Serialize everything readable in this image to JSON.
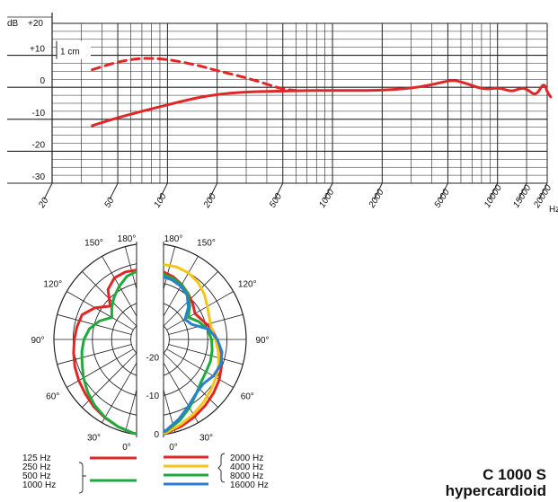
{
  "chart_data": [
    {
      "type": "line",
      "ylabel": "dB",
      "y_ticks": [
        "+20",
        "+10",
        "0",
        "-10",
        "-20",
        "-30"
      ],
      "ylim": [
        -30,
        20
      ],
      "xlabel": "Hz",
      "x_ticks": [
        "20",
        "50",
        "100",
        "200",
        "500",
        "1000",
        "2000",
        "5000",
        "10000",
        "15000",
        "20000"
      ],
      "xlim": [
        20,
        20000
      ],
      "x_scale": "log",
      "annotation": "1 cm",
      "colors": {
        "curve": "#e02626",
        "grid": "#222222"
      },
      "series": [
        {
          "values": [
            [
              35,
              -12
            ],
            [
              50,
              -9.5
            ],
            [
              70,
              -7.5
            ],
            [
              100,
              -5.5
            ],
            [
              140,
              -3.6
            ],
            [
              200,
              -2.2
            ],
            [
              300,
              -1.4
            ],
            [
              500,
              -1.2
            ],
            [
              700,
              -1.0
            ],
            [
              1000,
              -1.0
            ],
            [
              1500,
              -1.0
            ],
            [
              2000,
              -0.9
            ],
            [
              3000,
              -0.3
            ],
            [
              4000,
              0.8
            ],
            [
              5000,
              2.0
            ],
            [
              5500,
              2.2
            ],
            [
              6500,
              1.2
            ],
            [
              7500,
              0.0
            ],
            [
              8500,
              -0.6
            ],
            [
              9500,
              -0.3
            ],
            [
              10500,
              -0.3
            ],
            [
              11500,
              -1.0
            ],
            [
              12500,
              -1.2
            ],
            [
              13500,
              -0.4
            ],
            [
              14500,
              -0.3
            ],
            [
              15500,
              -1.0
            ],
            [
              16500,
              -2.2
            ],
            [
              17500,
              -1.8
            ],
            [
              18500,
              0.3
            ],
            [
              19000,
              0.8
            ],
            [
              19500,
              0.4
            ],
            [
              20000,
              -1.5
            ],
            [
              21000,
              -3.0
            ]
          ]
        },
        {
          "dashed": true,
          "values": [
            [
              35,
              5.5
            ],
            [
              50,
              8.0
            ],
            [
              70,
              9.2
            ],
            [
              100,
              8.8
            ],
            [
              150,
              7.0
            ],
            [
              200,
              5.2
            ],
            [
              300,
              3.0
            ],
            [
              400,
              1.0
            ],
            [
              500,
              -0.6
            ],
            [
              600,
              -1.0
            ]
          ]
        }
      ]
    },
    {
      "type": "polar",
      "angle_labels": [
        "180°",
        "150°",
        "120°",
        "90°",
        "60°",
        "30°",
        "0°"
      ],
      "radial_labels": [
        "-20",
        "-10",
        "0"
      ],
      "left_half": {
        "series": [
          {
            "frequencies": [
              "125 Hz",
              "250 Hz"
            ],
            "color": "#e02626",
            "values": [
              [
                0,
                0
              ],
              [
                10,
                -0.2
              ],
              [
                20,
                -0.8
              ],
              [
                30,
                -1.5
              ],
              [
                40,
                -2.2
              ],
              [
                50,
                -3.0
              ],
              [
                60,
                -3.6
              ],
              [
                70,
                -4.2
              ],
              [
                80,
                -4.8
              ],
              [
                90,
                -5.3
              ],
              [
                100,
                -5.7
              ],
              [
                110,
                -6.2
              ],
              [
                120,
                -8.5
              ],
              [
                130,
                -11.5
              ],
              [
                140,
                -8.0
              ],
              [
                150,
                -6.5
              ],
              [
                160,
                -6.3
              ],
              [
                170,
                -6.6
              ],
              [
                180,
                -6.8
              ]
            ]
          },
          {
            "frequencies": [
              "500 Hz",
              "1000 Hz"
            ],
            "color": "#1faa3e",
            "values": [
              [
                0,
                0
              ],
              [
                10,
                -0.2
              ],
              [
                20,
                -0.8
              ],
              [
                30,
                -1.6
              ],
              [
                40,
                -2.6
              ],
              [
                50,
                -3.8
              ],
              [
                60,
                -5.0
              ],
              [
                70,
                -6.2
              ],
              [
                80,
                -7.0
              ],
              [
                90,
                -7.8
              ],
              [
                100,
                -9.0
              ],
              [
                110,
                -11.0
              ],
              [
                120,
                -13.5
              ],
              [
                130,
                -12.0
              ],
              [
                140,
                -10.5
              ],
              [
                150,
                -9.0
              ],
              [
                160,
                -7.5
              ],
              [
                170,
                -6.8
              ],
              [
                180,
                -6.6
              ]
            ]
          }
        ]
      },
      "right_half": {
        "series": [
          {
            "frequencies": [
              "2000 Hz"
            ],
            "color": "#e02626",
            "values": [
              [
                0,
                0
              ],
              [
                10,
                -0.3
              ],
              [
                20,
                -1.0
              ],
              [
                30,
                -1.8
              ],
              [
                40,
                -2.6
              ],
              [
                50,
                -3.4
              ],
              [
                60,
                -4.2
              ],
              [
                70,
                -5.2
              ],
              [
                80,
                -6.2
              ],
              [
                90,
                -7.6
              ],
              [
                100,
                -8.8
              ],
              [
                110,
                -10.5
              ],
              [
                120,
                -11.5
              ],
              [
                130,
                -10.5
              ],
              [
                140,
                -9.5
              ],
              [
                150,
                -8.5
              ],
              [
                160,
                -7.6
              ],
              [
                170,
                -7.0
              ],
              [
                180,
                -6.8
              ]
            ]
          },
          {
            "frequencies": [
              "4000 Hz"
            ],
            "color": "#f5c518",
            "values": [
              [
                0,
                0
              ],
              [
                10,
                -0.4
              ],
              [
                20,
                -1.5
              ],
              [
                30,
                -2.5
              ],
              [
                40,
                -3.5
              ],
              [
                50,
                -4.4
              ],
              [
                60,
                -5.2
              ],
              [
                70,
                -6.0
              ],
              [
                80,
                -7.0
              ],
              [
                90,
                -8.0
              ],
              [
                100,
                -8.8
              ],
              [
                110,
                -8.6
              ],
              [
                120,
                -7.8
              ],
              [
                130,
                -6.6
              ],
              [
                140,
                -5.6
              ],
              [
                150,
                -5.0
              ],
              [
                160,
                -4.9
              ],
              [
                170,
                -5.2
              ],
              [
                180,
                -5.5
              ]
            ]
          },
          {
            "frequencies": [
              "8000 Hz"
            ],
            "color": "#1faa3e",
            "values": [
              [
                0,
                0
              ],
              [
                10,
                -0.8
              ],
              [
                20,
                -2.5
              ],
              [
                30,
                -4.5
              ],
              [
                40,
                -6.4
              ],
              [
                50,
                -7.7
              ],
              [
                60,
                -8.2
              ],
              [
                70,
                -8.3
              ],
              [
                80,
                -8.6
              ],
              [
                90,
                -9.0
              ],
              [
                100,
                -9.8
              ],
              [
                110,
                -11.5
              ],
              [
                120,
                -13.5
              ],
              [
                130,
                -11.5
              ],
              [
                140,
                -9.6
              ],
              [
                150,
                -8.6
              ],
              [
                160,
                -8.0
              ],
              [
                170,
                -7.6
              ],
              [
                180,
                -7.5
              ]
            ]
          },
          {
            "frequencies": [
              "16000 Hz"
            ],
            "color": "#2b7fd1",
            "values": [
              [
                0,
                0
              ],
              [
                10,
                -1.0
              ],
              [
                20,
                -3.0
              ],
              [
                30,
                -5.0
              ],
              [
                40,
                -6.5
              ],
              [
                50,
                -7.0
              ],
              [
                60,
                -6.0
              ],
              [
                70,
                -5.5
              ],
              [
                80,
                -6.0
              ],
              [
                90,
                -7.5
              ],
              [
                100,
                -9.5
              ],
              [
                110,
                -13.5
              ],
              [
                120,
                -14.5
              ],
              [
                130,
                -12.0
              ],
              [
                140,
                -10.0
              ],
              [
                150,
                -9.0
              ],
              [
                160,
                -8.5
              ],
              [
                170,
                -8.3
              ],
              [
                180,
                -8.2
              ]
            ]
          }
        ]
      }
    }
  ],
  "model": "C 1000 S",
  "pattern": "hypercardioid"
}
